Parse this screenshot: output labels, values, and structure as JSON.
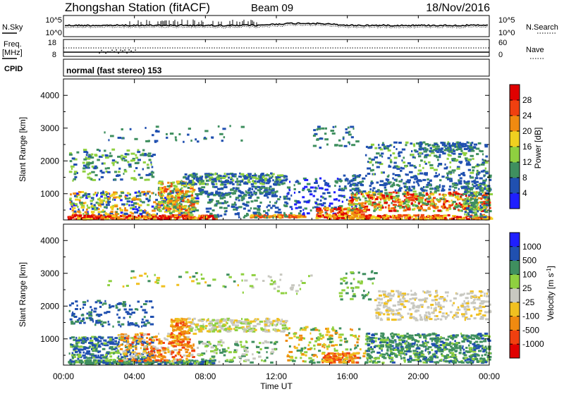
{
  "header": {
    "title": "Zhongshan Station (fitACF)",
    "beam": "Beam 09",
    "date": "18/Nov/2016"
  },
  "status_panels": {
    "nsky_label": "N.Sky",
    "nsearch_label": "N.Search",
    "freq_label": "Freq.",
    "freq_unit": "[MHz]",
    "nave_label": "Nave",
    "cpid_label": "CPID",
    "cpid_text": "normal (fast stereo) 153",
    "noise_ticks": [
      "10^5",
      "10^0"
    ],
    "freq_ticks": [
      "18",
      "8"
    ],
    "nave_ticks": [
      "60",
      "0"
    ]
  },
  "colors": {
    "power": [
      "#1f1fff",
      "#2050b0",
      "#3f8f5f",
      "#8fd040",
      "#f0d020",
      "#f08a10",
      "#f04010",
      "#e00000"
    ],
    "velocity": [
      "#e00000",
      "#f04010",
      "#f08a10",
      "#f0c020",
      "#c8c8c0",
      "#8fd040",
      "#3f8f5f",
      "#2050b0",
      "#1f1fff"
    ]
  },
  "chart_data": [
    {
      "type": "heatmap",
      "name": "power",
      "xlabel": "Time UT",
      "ylabel": "Slant Range [km]",
      "xlim": [
        0,
        24
      ],
      "ylim": [
        200,
        4500
      ],
      "x_ticks": [
        "00:00",
        "04:00",
        "08:00",
        "12:00",
        "16:00",
        "20:00",
        "00:00"
      ],
      "y_ticks": [
        "1000",
        "2000",
        "3000",
        "4000"
      ],
      "colorbar_label": "Power [dB]",
      "colorbar_ticks": [
        "4",
        "8",
        "12",
        "16",
        "20",
        "24",
        "28"
      ],
      "colorbar_range": [
        0,
        30
      ]
    },
    {
      "type": "heatmap",
      "name": "velocity",
      "xlabel": "Time UT",
      "ylabel": "Slant Range [km]",
      "xlim": [
        0,
        24
      ],
      "ylim": [
        200,
        4500
      ],
      "x_ticks": [
        "00:00",
        "04:00",
        "08:00",
        "12:00",
        "16:00",
        "20:00",
        "00:00"
      ],
      "y_ticks": [
        "1000",
        "2000",
        "3000",
        "4000"
      ],
      "colorbar_label": "Velocity [m s^-1]",
      "colorbar_ticks": [
        "1000",
        "500",
        "100",
        "25",
        "-25",
        "-100",
        "-500",
        "-1000"
      ]
    }
  ]
}
